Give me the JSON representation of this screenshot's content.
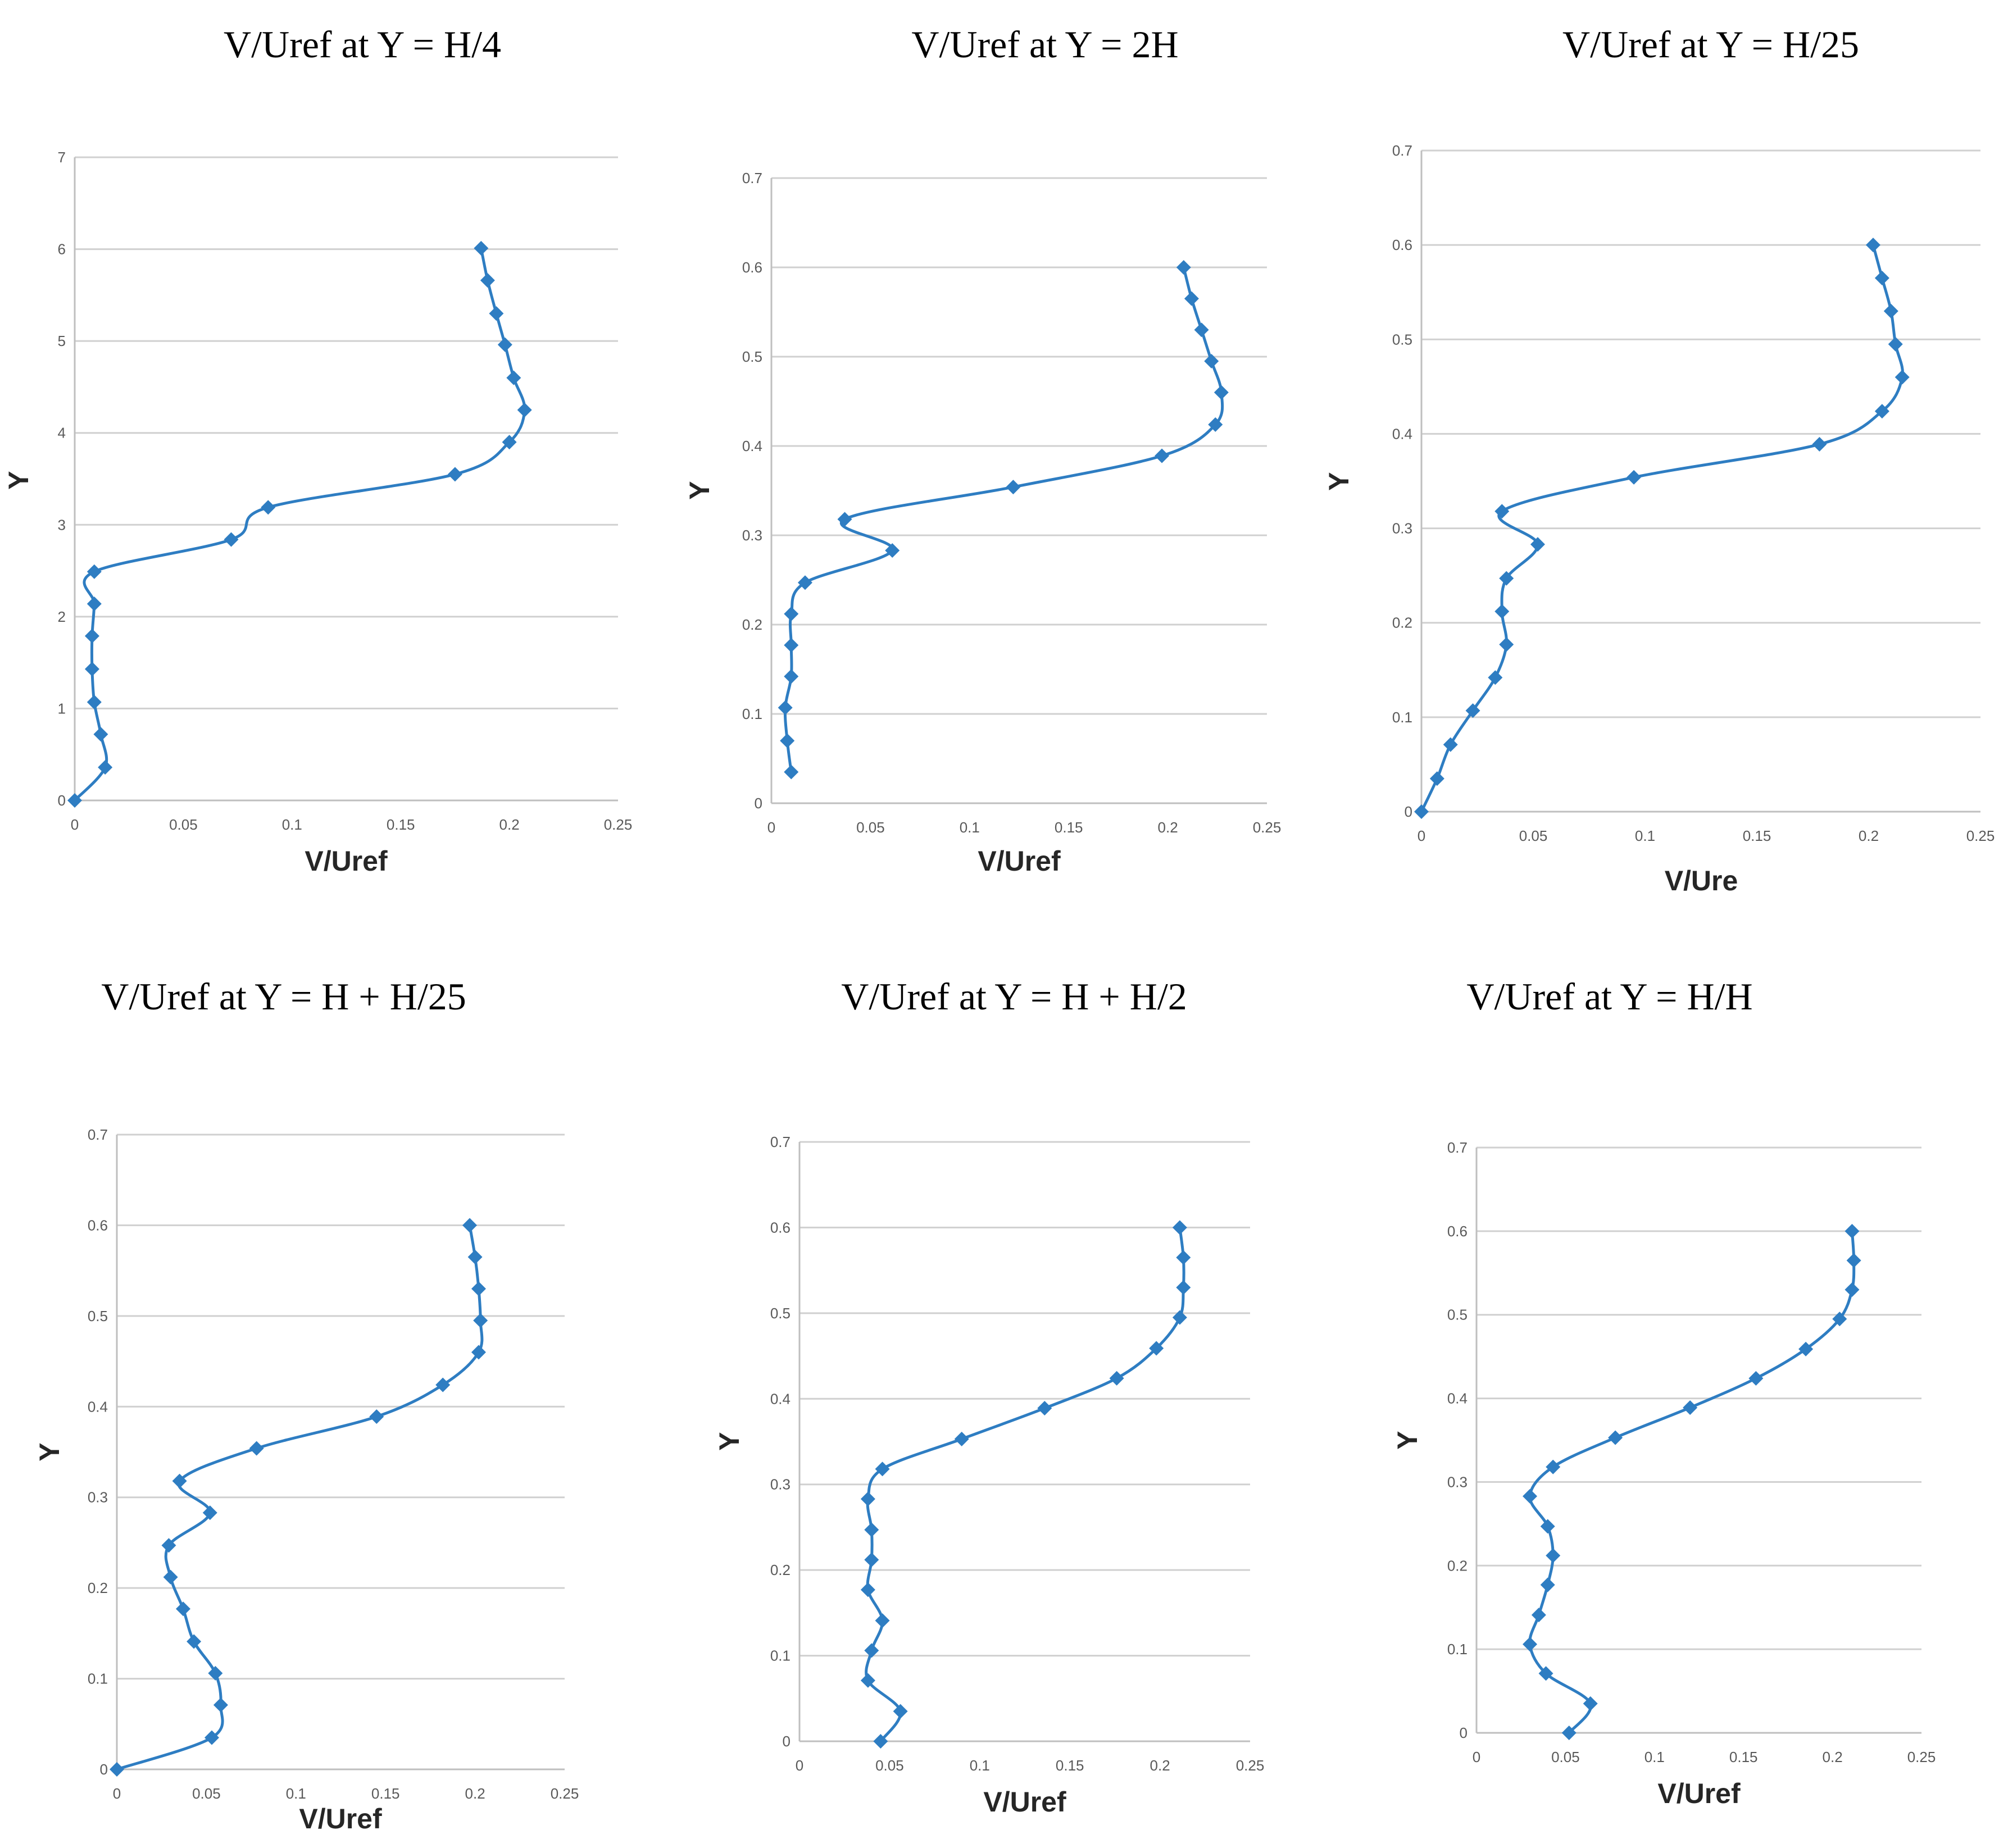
{
  "colors": {
    "series": "#2E7DC2"
  },
  "chart_data": [
    {
      "type": "line",
      "title": "V/Uref at Y = H/4",
      "xlabel": "V/Uref",
      "ylabel": "Y",
      "xlim": [
        0,
        0.25
      ],
      "ylim": [
        0,
        7
      ],
      "xticks": [
        "0",
        "0.05",
        "0.1",
        "0.15",
        "0.2",
        "0.25"
      ],
      "yticks": [
        "0",
        "1",
        "2",
        "3",
        "4",
        "5",
        "6",
        "7"
      ],
      "x": [
        0,
        0.014,
        0.012,
        0.009,
        0.008,
        0.008,
        0.009,
        0.009,
        0.072,
        0.089,
        0.175,
        0.2,
        0.207,
        0.202,
        0.198,
        0.194,
        0.19,
        0.187
      ],
      "y": [
        0,
        0.36,
        0.72,
        1.07,
        1.43,
        1.79,
        2.14,
        2.49,
        2.84,
        3.19,
        3.55,
        3.9,
        4.25,
        4.6,
        4.96,
        5.3,
        5.66,
        6.01
      ]
    },
    {
      "type": "line",
      "title": "V/Uref at Y = 2H",
      "xlabel": "V/Uref",
      "ylabel": "Y",
      "xlim": [
        0,
        0.25
      ],
      "ylim": [
        0,
        0.7
      ],
      "xticks": [
        "0",
        "0.05",
        "0.1",
        "0.15",
        "0.2",
        "0.25"
      ],
      "yticks": [
        "0",
        "0.1",
        "0.2",
        "0.3",
        "0.4",
        "0.5",
        "0.6",
        "0.7"
      ],
      "x": [
        0.01,
        0.008,
        0.007,
        0.01,
        0.01,
        0.01,
        0.017,
        0.061,
        0.037,
        0.122,
        0.197,
        0.224,
        0.227,
        0.222,
        0.217,
        0.212,
        0.208
      ],
      "y": [
        0.035,
        0.07,
        0.107,
        0.142,
        0.177,
        0.212,
        0.247,
        0.283,
        0.318,
        0.354,
        0.389,
        0.424,
        0.46,
        0.495,
        0.53,
        0.565,
        0.6
      ]
    },
    {
      "type": "line",
      "title": "V/Uref at Y = H/25",
      "xlabel": "V/Ure",
      "ylabel": "Y",
      "xlim": [
        0,
        0.25
      ],
      "ylim": [
        0,
        0.7
      ],
      "xticks": [
        "0",
        "0.05",
        "0.1",
        "0.15",
        "0.2",
        "0.25"
      ],
      "yticks": [
        "0",
        "0.1",
        "0.2",
        "0.3",
        "0.4",
        "0.5",
        "0.6",
        "0.7"
      ],
      "x": [
        0,
        0.007,
        0.013,
        0.023,
        0.033,
        0.038,
        0.036,
        0.038,
        0.052,
        0.036,
        0.095,
        0.178,
        0.206,
        0.215,
        0.212,
        0.21,
        0.206,
        0.202
      ],
      "y": [
        0,
        0.035,
        0.071,
        0.107,
        0.142,
        0.177,
        0.212,
        0.247,
        0.283,
        0.318,
        0.354,
        0.389,
        0.424,
        0.46,
        0.495,
        0.53,
        0.565,
        0.6
      ]
    },
    {
      "type": "line",
      "title": "V/Uref at Y = H + H/25",
      "xlabel": "V/Uref",
      "ylabel": "Y",
      "xlim": [
        0,
        0.25
      ],
      "ylim": [
        0,
        0.7
      ],
      "xticks": [
        "0",
        "0.05",
        "0.1",
        "0.15",
        "0.2",
        "0.25"
      ],
      "yticks": [
        "0",
        "0.1",
        "0.2",
        "0.3",
        "0.4",
        "0.5",
        "0.6",
        "0.7"
      ],
      "x": [
        0,
        0.053,
        0.058,
        0.055,
        0.043,
        0.037,
        0.03,
        0.029,
        0.052,
        0.035,
        0.078,
        0.145,
        0.182,
        0.202,
        0.203,
        0.202,
        0.2,
        0.197
      ],
      "y": [
        0,
        0.035,
        0.071,
        0.106,
        0.141,
        0.177,
        0.212,
        0.247,
        0.283,
        0.318,
        0.354,
        0.389,
        0.424,
        0.46,
        0.495,
        0.53,
        0.565,
        0.6
      ]
    },
    {
      "type": "line",
      "title": "V/Uref at Y = H + H/2",
      "xlabel": "V/Uref",
      "ylabel": "Y",
      "xlim": [
        0,
        0.25
      ],
      "ylim": [
        0,
        0.7
      ],
      "xticks": [
        "0",
        "0.05",
        "0.1",
        "0.15",
        "0.2",
        "0.25"
      ],
      "yticks": [
        "0",
        "0.1",
        "0.2",
        "0.3",
        "0.4",
        "0.5",
        "0.6",
        "0.7"
      ],
      "x": [
        0.045,
        0.056,
        0.038,
        0.04,
        0.046,
        0.038,
        0.04,
        0.04,
        0.038,
        0.046,
        0.09,
        0.136,
        0.176,
        0.198,
        0.211,
        0.213,
        0.213,
        0.211
      ],
      "y": [
        0,
        0.035,
        0.071,
        0.106,
        0.141,
        0.177,
        0.212,
        0.247,
        0.283,
        0.318,
        0.353,
        0.389,
        0.424,
        0.459,
        0.495,
        0.53,
        0.565,
        0.6
      ]
    },
    {
      "type": "line",
      "title": "V/Uref at Y = H/H",
      "xlabel": "V/Uref",
      "ylabel": "Y",
      "xlim": [
        0,
        0.25
      ],
      "ylim": [
        0,
        0.7
      ],
      "xticks": [
        "0",
        "0.05",
        "0.1",
        "0.15",
        "0.2",
        "0.25"
      ],
      "yticks": [
        "0",
        "0.1",
        "0.2",
        "0.3",
        "0.4",
        "0.5",
        "0.6",
        "0.7"
      ],
      "x": [
        0.052,
        0.064,
        0.039,
        0.03,
        0.035,
        0.04,
        0.043,
        0.04,
        0.03,
        0.043,
        0.078,
        0.12,
        0.157,
        0.185,
        0.204,
        0.211,
        0.212,
        0.211
      ],
      "y": [
        0,
        0.035,
        0.071,
        0.106,
        0.141,
        0.177,
        0.212,
        0.247,
        0.283,
        0.318,
        0.353,
        0.389,
        0.424,
        0.459,
        0.495,
        0.53,
        0.565,
        0.6
      ]
    }
  ]
}
